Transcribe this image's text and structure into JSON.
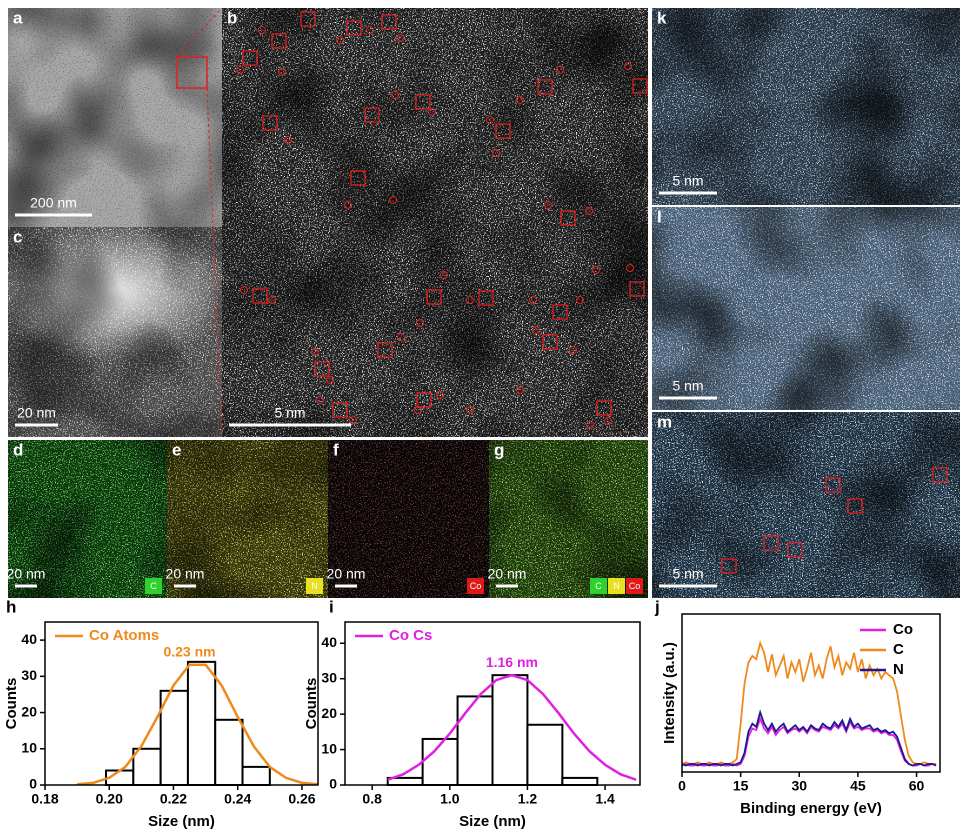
{
  "images": [
    {
      "label": "a",
      "scale_bar": "200 nm"
    },
    {
      "label": "b",
      "scale_bar": "5 nm"
    },
    {
      "label": "c",
      "scale_bar": "20 nm"
    },
    {
      "label": "d",
      "scale_bar": "20 nm",
      "tags": [
        {
          "text": "C",
          "color": "#2fd12f"
        }
      ]
    },
    {
      "label": "e",
      "scale_bar": "20 nm",
      "tags": [
        {
          "text": "N",
          "color": "#e8e020"
        }
      ]
    },
    {
      "label": "f",
      "scale_bar": "20 nm",
      "tags": [
        {
          "text": "Co",
          "color": "#e01818"
        }
      ]
    },
    {
      "label": "g",
      "scale_bar": "20 nm",
      "tags": [
        {
          "text": "C",
          "color": "#2fd12f"
        },
        {
          "text": "N",
          "color": "#e8e020"
        },
        {
          "text": "Co",
          "color": "#e01818"
        }
      ]
    },
    {
      "label": "k",
      "scale_bar": "5 nm"
    },
    {
      "label": "l",
      "scale_bar": "5 nm"
    },
    {
      "label": "m",
      "scale_bar": "5 nm"
    }
  ],
  "chart_data": [
    {
      "type": "histogram",
      "panel_label": "h",
      "xlabel": "Size (nm)",
      "ylabel": "Counts",
      "bins": [
        0.199,
        0.2075,
        0.216,
        0.2245,
        0.233,
        0.2415,
        0.25
      ],
      "counts": [
        4,
        10,
        26,
        34,
        18,
        5
      ],
      "color": "#000000",
      "fit": {
        "name": "Co Atoms",
        "color": "#f0891c",
        "x": [
          0.19,
          0.195,
          0.2,
          0.205,
          0.21,
          0.215,
          0.22,
          0.225,
          0.23,
          0.235,
          0.24,
          0.245,
          0.25,
          0.255,
          0.26,
          0.265
        ],
        "values": [
          0.2,
          0.6,
          2.0,
          5.0,
          10.7,
          18.8,
          27.5,
          33.2,
          33.2,
          27.5,
          18.8,
          10.7,
          5.0,
          2.0,
          0.6,
          0.2
        ]
      },
      "annotation": "0.23 nm",
      "xlim": [
        0.18,
        0.265
      ],
      "ylim": [
        0,
        45
      ],
      "xticks": [
        0.18,
        {
          "value": 0.2,
          "label": "0.20"
        },
        0.22,
        0.24,
        0.26
      ],
      "yticks": [
        0,
        10,
        20,
        30,
        40
      ]
    },
    {
      "type": "histogram",
      "panel_label": "i",
      "xlabel": "Size (nm)",
      "ylabel": "Counts",
      "bins": [
        0.84,
        0.93,
        1.02,
        1.11,
        1.2,
        1.29,
        1.38
      ],
      "counts": [
        2,
        13,
        25,
        31,
        17,
        2
      ],
      "color": "#000000",
      "fit": {
        "name": "Co Cs",
        "color": "#e020e0",
        "x": [
          0.84,
          0.88,
          0.92,
          0.96,
          1.0,
          1.04,
          1.08,
          1.12,
          1.16,
          1.2,
          1.24,
          1.28,
          1.32,
          1.36,
          1.4,
          1.44,
          1.48
        ],
        "values": [
          1.5,
          3.0,
          5.7,
          9.5,
          14.5,
          20.3,
          25.7,
          29.6,
          31,
          29.6,
          25.7,
          20.3,
          14.5,
          9.5,
          5.7,
          3.0,
          1.5
        ]
      },
      "annotation": "1.16 nm",
      "xlim": [
        0.73,
        1.49
      ],
      "ylim": [
        0,
        46
      ],
      "xticks": [
        0.8,
        {
          "value": 1,
          "label": "1.0"
        },
        1.2,
        1.4
      ],
      "yticks": [
        0,
        10,
        20,
        30,
        40
      ]
    },
    {
      "type": "line",
      "panel_label": "j",
      "xlabel": "Binding energy (eV)",
      "ylabel": "Intensity (a.u.)",
      "legend": "upper right",
      "x": [
        0,
        1,
        2,
        3,
        4,
        5,
        6,
        7,
        8,
        9,
        10,
        11,
        12,
        13,
        14,
        15,
        16,
        17,
        18,
        19,
        20,
        21,
        22,
        23,
        24,
        25,
        26,
        27,
        28,
        29,
        30,
        31,
        32,
        33,
        34,
        35,
        36,
        37,
        38,
        39,
        40,
        41,
        42,
        43,
        44,
        45,
        46,
        47,
        48,
        49,
        50,
        51,
        52,
        53,
        54,
        55,
        56,
        57,
        58,
        59,
        60,
        61,
        62,
        63,
        64,
        65
      ],
      "series": [
        {
          "name": "Co",
          "color": "#e020e0",
          "values": [
            4,
            5,
            4,
            4,
            5,
            4,
            4,
            5,
            4,
            4,
            5,
            4,
            4,
            5,
            4,
            5,
            10,
            22,
            27,
            26,
            33,
            27,
            24,
            28,
            23,
            26,
            28,
            24,
            26,
            27,
            25,
            27,
            24,
            28,
            26,
            25,
            28,
            27,
            26,
            29,
            27,
            30,
            25,
            31,
            27,
            28,
            26,
            27,
            27,
            25,
            26,
            24,
            25,
            23,
            23,
            20,
            13,
            7,
            5,
            4,
            4,
            5,
            4,
            4,
            5,
            4
          ]
        },
        {
          "name": "C",
          "color": "#f0891c",
          "values": [
            5,
            6,
            5,
            5,
            6,
            5,
            5,
            6,
            5,
            5,
            6,
            5,
            5,
            6,
            8,
            30,
            55,
            68,
            72,
            70,
            80,
            74,
            62,
            73,
            60,
            66,
            72,
            58,
            68,
            62,
            70,
            56,
            64,
            74,
            60,
            66,
            58,
            70,
            78,
            65,
            72,
            60,
            68,
            64,
            74,
            62,
            70,
            58,
            66,
            60,
            64,
            58,
            62,
            60,
            58,
            50,
            35,
            20,
            10,
            6,
            5,
            5,
            6,
            5,
            5,
            5
          ]
        },
        {
          "name": "N",
          "color": "#1a1a8c",
          "values": [
            5,
            4,
            5,
            5,
            4,
            5,
            5,
            4,
            5,
            5,
            4,
            5,
            5,
            4,
            5,
            6,
            12,
            25,
            30,
            28,
            37,
            30,
            26,
            30,
            25,
            28,
            30,
            25,
            27,
            29,
            26,
            28,
            25,
            29,
            27,
            26,
            30,
            28,
            27,
            31,
            28,
            32,
            26,
            33,
            28,
            30,
            27,
            28,
            29,
            26,
            27,
            25,
            26,
            24,
            25,
            22,
            15,
            8,
            5,
            4,
            5,
            5,
            4,
            5,
            5,
            4
          ]
        }
      ],
      "xlim": [
        0,
        66
      ],
      "ylim": [
        0,
        98
      ],
      "xticks": [
        0,
        15,
        30,
        45,
        60
      ]
    }
  ]
}
